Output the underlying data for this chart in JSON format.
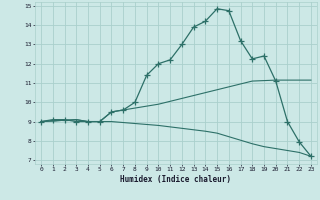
{
  "xlabel": "Humidex (Indice chaleur)",
  "bg_color": "#cce8e6",
  "line_color": "#2d7068",
  "grid_color": "#aad0cc",
  "xlim": [
    -0.5,
    23.5
  ],
  "ylim": [
    6.8,
    15.2
  ],
  "yticks": [
    7,
    8,
    9,
    10,
    11,
    12,
    13,
    14,
    15
  ],
  "xticks": [
    0,
    1,
    2,
    3,
    4,
    5,
    6,
    7,
    8,
    9,
    10,
    11,
    12,
    13,
    14,
    15,
    16,
    17,
    18,
    19,
    20,
    21,
    22,
    23
  ],
  "curve1_x": [
    0,
    1,
    2,
    3,
    4,
    5,
    6,
    7,
    8,
    9,
    10,
    11,
    12,
    13,
    14,
    15,
    16,
    17,
    18,
    19,
    20,
    21,
    22,
    23
  ],
  "curve1_y": [
    9.0,
    9.1,
    9.1,
    9.0,
    9.0,
    9.0,
    9.5,
    9.6,
    10.0,
    11.4,
    12.0,
    12.2,
    13.0,
    13.9,
    14.2,
    14.85,
    14.75,
    13.2,
    12.25,
    12.4,
    11.1,
    9.0,
    7.95,
    7.2
  ],
  "curve2_x": [
    0,
    3,
    4,
    5,
    6,
    10,
    14,
    15,
    18,
    20,
    22,
    23
  ],
  "curve2_y": [
    9.0,
    9.1,
    9.0,
    9.0,
    9.5,
    9.9,
    10.5,
    10.65,
    11.1,
    11.15,
    11.15,
    11.15
  ],
  "curve3_x": [
    0,
    3,
    4,
    5,
    6,
    10,
    14,
    15,
    18,
    19,
    21,
    22,
    23
  ],
  "curve3_y": [
    9.0,
    9.1,
    9.0,
    9.0,
    9.0,
    8.8,
    8.5,
    8.4,
    7.85,
    7.7,
    7.5,
    7.4,
    7.2
  ]
}
